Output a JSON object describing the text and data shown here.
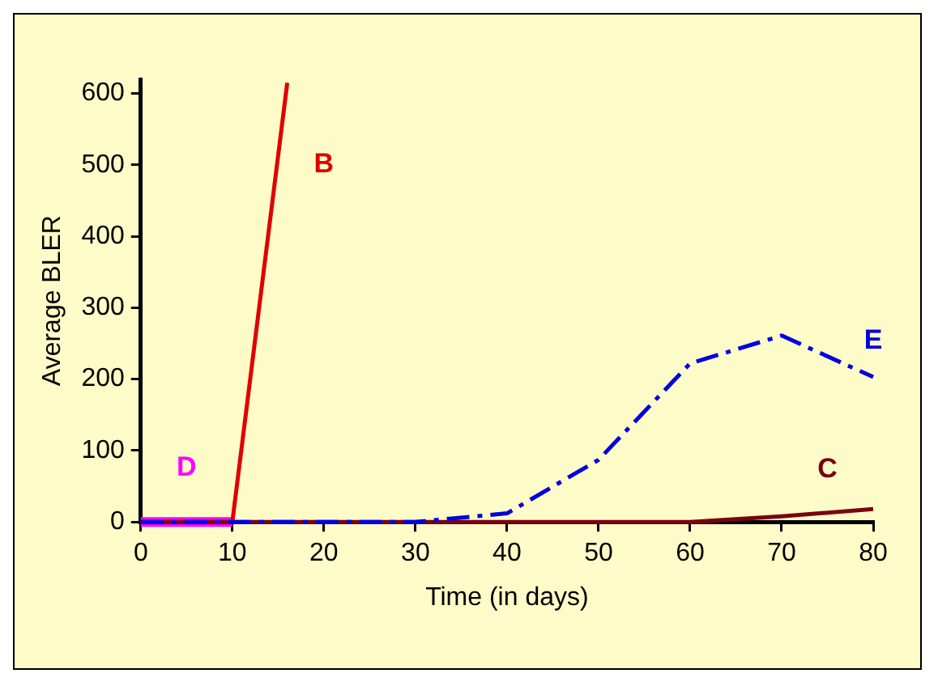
{
  "chart_data": {
    "type": "line",
    "xlabel": "Time (in days)",
    "ylabel": "Average BLER",
    "xlim": [
      0,
      80
    ],
    "xticks": [
      0,
      10,
      20,
      30,
      40,
      50,
      60,
      70,
      80
    ],
    "ylim": [
      0,
      620
    ],
    "yticks": [
      0,
      100,
      200,
      300,
      400,
      500,
      600
    ],
    "grid": false,
    "marker": "none",
    "series": [
      {
        "name": "D",
        "color": "#ff00ff",
        "x": [
          0,
          10
        ],
        "values": [
          0,
          0
        ]
      },
      {
        "name": "B",
        "color": "#e00000",
        "x": [
          0,
          10,
          16
        ],
        "values": [
          0,
          0,
          615
        ]
      },
      {
        "name": "C",
        "color": "#7a0010",
        "x": [
          0,
          10,
          20,
          30,
          40,
          50,
          60,
          70,
          80
        ],
        "values": [
          0,
          0,
          0,
          0,
          0,
          0,
          0,
          8,
          18
        ]
      },
      {
        "name": "E",
        "color": "#0000e0",
        "line_style": "dashed",
        "x": [
          0,
          10,
          20,
          30,
          40,
          50,
          60,
          70,
          80
        ],
        "values": [
          0,
          0,
          0,
          0,
          12,
          87,
          222,
          261,
          203
        ]
      }
    ]
  }
}
